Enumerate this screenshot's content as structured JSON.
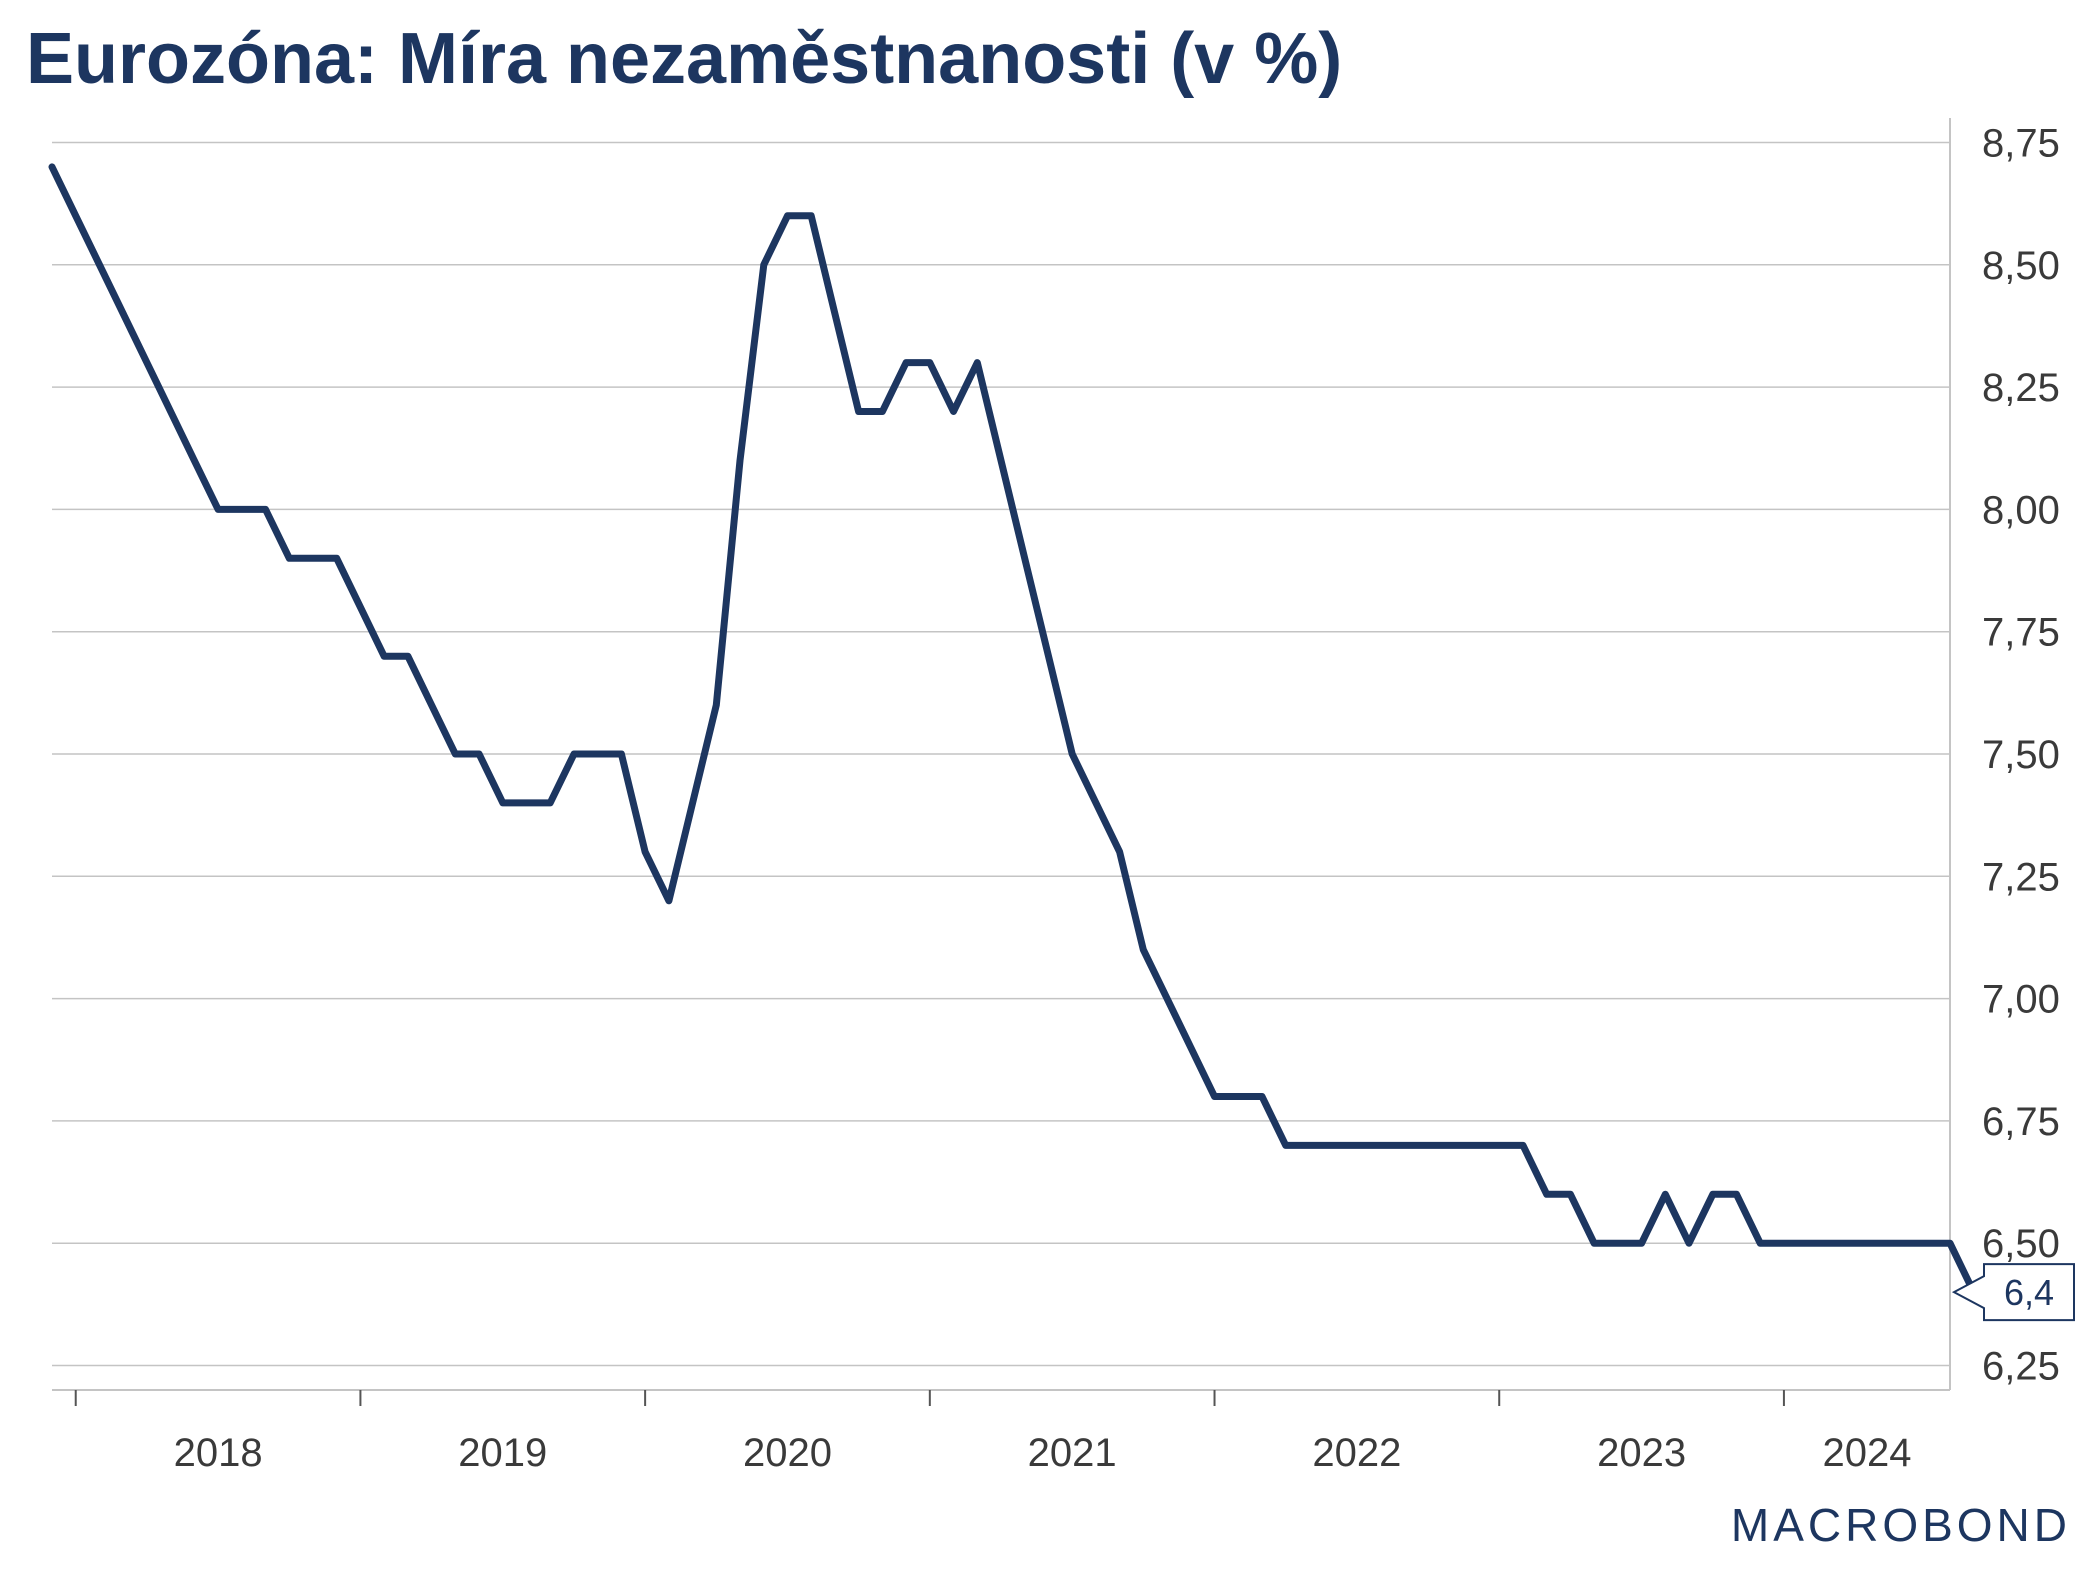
{
  "title": "Eurozóna: Míra nezaměstnanosti (v %)",
  "brand": "MACROBOND",
  "colors": {
    "line": "#1d3660",
    "grid": "#c4c4c4",
    "text": "#3a3a3a"
  },
  "chart_data": {
    "type": "line",
    "title": "Eurozóna: Míra nezaměstnanosti (v %)",
    "xlabel": "",
    "ylabel": "",
    "x_unit": "month",
    "x_start": "2017-12",
    "xlim": [
      "2017-12",
      "2024-08"
    ],
    "ylim": [
      6.2,
      8.8
    ],
    "yticks": [
      6.25,
      6.5,
      6.75,
      7.0,
      7.25,
      7.5,
      7.75,
      8.0,
      8.25,
      8.5,
      8.75
    ],
    "ytick_labels": [
      "6,25",
      "6,50",
      "6,75",
      "7,00",
      "7,25",
      "7,50",
      "7,75",
      "8,00",
      "8,25",
      "8,50",
      "8,75"
    ],
    "y_axis_side": "right",
    "grid": true,
    "x_labels": [
      "2018",
      "2019",
      "2020",
      "2021",
      "2022",
      "2023",
      "2024"
    ],
    "series": [
      {
        "values": [
          8.7,
          8.6,
          8.5,
          8.4,
          8.3,
          8.2,
          8.1,
          8.0,
          8.0,
          8.0,
          7.9,
          7.9,
          7.9,
          7.8,
          7.7,
          7.7,
          7.6,
          7.5,
          7.5,
          7.4,
          7.4,
          7.4,
          7.5,
          7.5,
          7.5,
          7.3,
          7.2,
          7.4,
          7.6,
          8.1,
          8.5,
          8.6,
          8.6,
          8.4,
          8.2,
          8.2,
          8.3,
          8.3,
          8.2,
          8.3,
          8.1,
          7.9,
          7.7,
          7.5,
          7.4,
          7.3,
          7.1,
          7.0,
          6.9,
          6.8,
          6.8,
          6.8,
          6.7,
          6.7,
          6.7,
          6.7,
          6.7,
          6.7,
          6.7,
          6.7,
          6.7,
          6.7,
          6.7,
          6.6,
          6.6,
          6.5,
          6.5,
          6.5,
          6.6,
          6.5,
          6.6,
          6.6,
          6.5,
          6.5,
          6.5,
          6.5,
          6.5,
          6.5,
          6.5,
          6.5,
          6.5,
          6.4
        ]
      }
    ],
    "last_value_label": "6,4"
  }
}
